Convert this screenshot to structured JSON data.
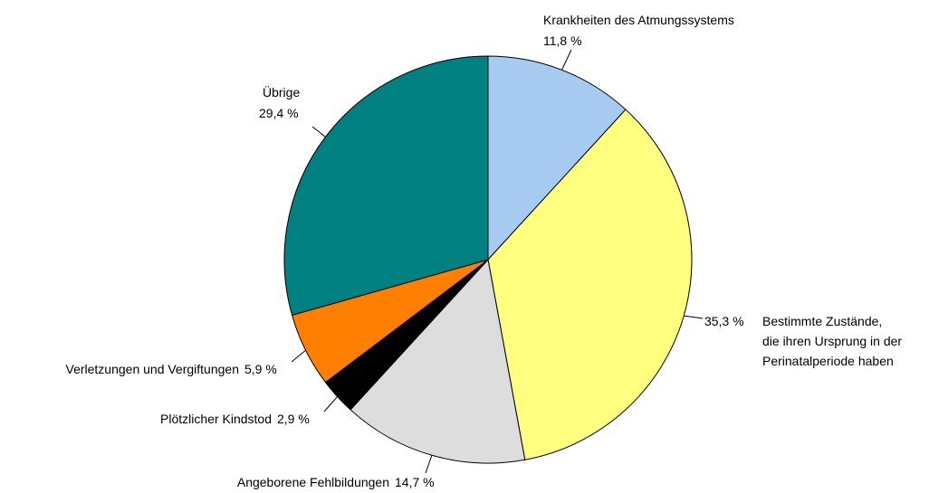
{
  "chart_data": {
    "type": "pie",
    "categories": [
      "Krankheiten des Atmungssystems",
      "Bestimmte Zustände,\ndie ihren Ursprung in der\nPerinatalperiode haben",
      "Angeborene Fehlbildungen",
      "Plötzlicher Kindstod",
      "Verletzungen und Vergiftungen",
      "Übrige"
    ],
    "values": [
      11.8,
      35.3,
      14.7,
      2.9,
      5.9,
      29.4
    ],
    "value_labels": [
      "11,8 %",
      "35,3 %",
      "14,7 %",
      "2,9 %",
      "5,9 %",
      "29,4 %"
    ],
    "colors": [
      "#a6caf0",
      "#ffff80",
      "#dddddd",
      "#000000",
      "#ff8000",
      "#008080"
    ]
  }
}
